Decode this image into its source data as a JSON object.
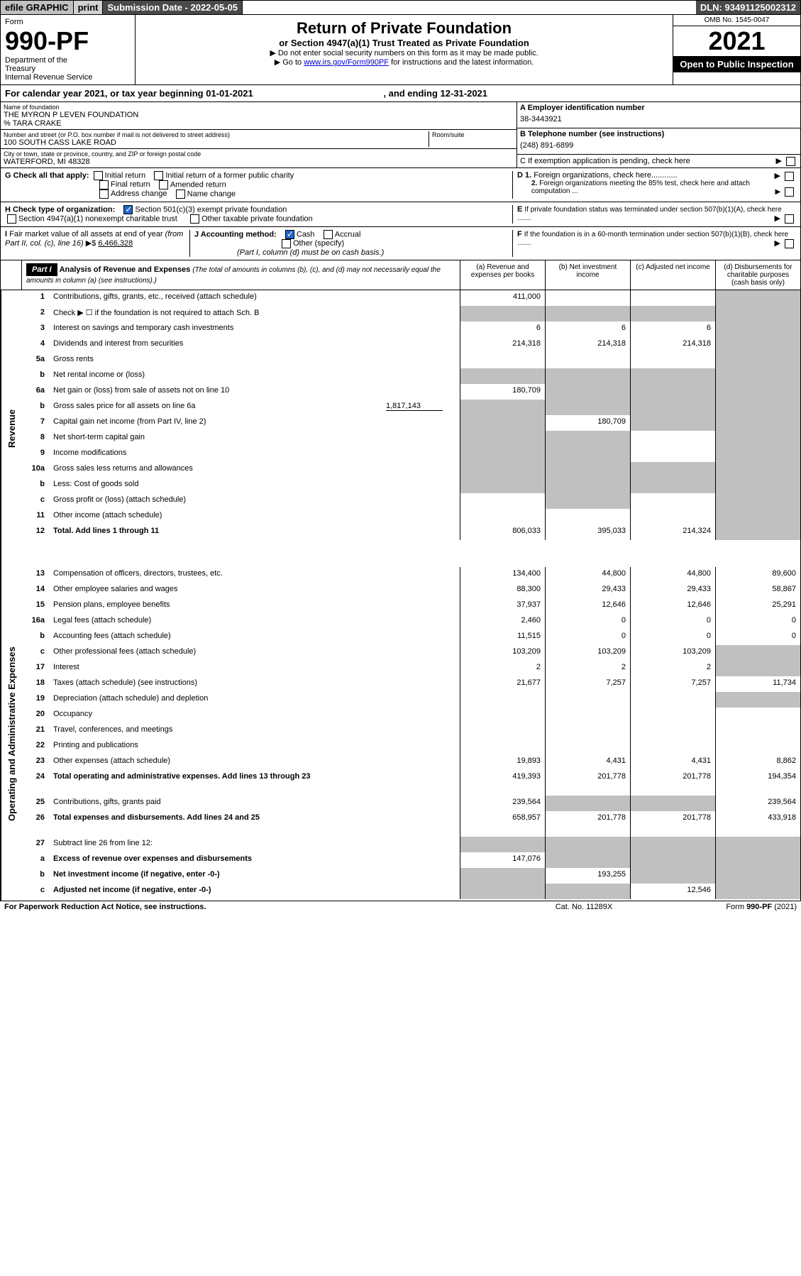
{
  "top_bar": {
    "efile": "efile GRAPHIC",
    "print": "print",
    "submission": "Submission Date - 2022-05-05",
    "dln": "DLN: 93491125002312"
  },
  "header": {
    "form_word": "Form",
    "form_number": "990-PF",
    "dept": "Department of the Treasury\nInternal Revenue Service",
    "title": "Return of Private Foundation",
    "subtitle": "or Section 4947(a)(1) Trust Treated as Private Foundation",
    "instr1": "▶ Do not enter social security numbers on this form as it may be made public.",
    "instr2": "▶ Go to",
    "link": "www.irs.gov/Form990PF",
    "instr3": "for instructions and the latest information.",
    "omb": "OMB No. 1545-0047",
    "year": "2021",
    "open": "Open to Public Inspection"
  },
  "cal_year": "For calendar year 2021, or tax year beginning 01-01-2021",
  "cal_year_end": ", and ending 12-31-2021",
  "entity": {
    "name_label": "Name of foundation",
    "name": "THE MYRON P LEVEN FOUNDATION",
    "care_of": "% TARA CRAKE",
    "addr_label": "Number and street (or P.O. box number if mail is not delivered to street address)",
    "addr": "100 SOUTH CASS LAKE ROAD",
    "room_label": "Room/suite",
    "city_label": "City or town, state or province, country, and ZIP or foreign postal code",
    "city": "WATERFORD, MI  48328",
    "ein_label": "A Employer identification number",
    "ein": "38-3443921",
    "phone_label": "B Telephone number (see instructions)",
    "phone": "(248) 891-6899",
    "c_label": "C If exemption application is pending, check here"
  },
  "section_g": {
    "label": "G Check all that apply:",
    "opts": [
      "Initial return",
      "Initial return of a former public charity",
      "Final return",
      "Amended return",
      "Address change",
      "Name change"
    ]
  },
  "section_d": {
    "d1": "D 1. Foreign organizations, check here",
    "d2": "2. Foreign organizations meeting the 85% test, check here and attach computation ..."
  },
  "section_h": {
    "label": "H Check type of organization:",
    "opt1": "Section 501(c)(3) exempt private foundation",
    "opt2": "Section 4947(a)(1) nonexempt charitable trust",
    "opt3": "Other taxable private foundation"
  },
  "section_e": "E  If private foundation status was terminated under section 507(b)(1)(A), check here .......",
  "section_i": {
    "label": "I Fair market value of all assets at end of year (from Part II, col. (c), line 16) ▶$",
    "value": "6,466,328"
  },
  "section_j": {
    "label": "J Accounting method:",
    "cash": "Cash",
    "accrual": "Accrual",
    "other": "Other (specify)",
    "note": "(Part I, column (d) must be on cash basis.)"
  },
  "section_f": "F  If the foundation is in a 60-month termination under section 507(b)(1)(B), check here .......",
  "part1": {
    "hdr": "Part I",
    "title": "Analysis of Revenue and Expenses",
    "note": "(The total of amounts in columns (b), (c), and (d) may not necessarily equal the amounts in column (a) (see instructions).)",
    "col_a": "(a)   Revenue and expenses per books",
    "col_b": "(b)   Net investment income",
    "col_c": "(c)   Adjusted net income",
    "col_d": "(d)   Disbursements for charitable purposes (cash basis only)"
  },
  "side_labels": {
    "revenue": "Revenue",
    "expenses": "Operating and Administrative Expenses"
  },
  "lines": [
    {
      "no": "1",
      "desc": "Contributions, gifts, grants, etc., received (attach schedule)",
      "a": "411,000",
      "b": "",
      "c": "",
      "d": "",
      "d_shaded": true
    },
    {
      "no": "2",
      "desc": "Check ▶ ☐ if the foundation is not required to attach Sch. B",
      "a": "",
      "b": "",
      "c": "",
      "d": "",
      "all_shaded": true
    },
    {
      "no": "3",
      "desc": "Interest on savings and temporary cash investments",
      "a": "6",
      "b": "6",
      "c": "6",
      "d": "",
      "d_shaded": true
    },
    {
      "no": "4",
      "desc": "Dividends and interest from securities",
      "a": "214,318",
      "b": "214,318",
      "c": "214,318",
      "d": "",
      "d_shaded": true
    },
    {
      "no": "5a",
      "desc": "Gross rents",
      "a": "",
      "b": "",
      "c": "",
      "d": "",
      "d_shaded": true
    },
    {
      "no": "b",
      "desc": "Net rental income or (loss)",
      "a": "",
      "b": "",
      "c": "",
      "d": "",
      "inline": true,
      "all_shaded": true
    },
    {
      "no": "6a",
      "desc": "Net gain or (loss) from sale of assets not on line 10",
      "a": "180,709",
      "b": "",
      "c": "",
      "d": "",
      "bcd_shaded": true
    },
    {
      "no": "b",
      "desc": "Gross sales price for all assets on line 6a",
      "inline_val": "1,817,143",
      "a": "",
      "b": "",
      "c": "",
      "d": "",
      "all_shaded": true
    },
    {
      "no": "7",
      "desc": "Capital gain net income (from Part IV, line 2)",
      "a": "",
      "b": "180,709",
      "c": "",
      "d": "",
      "a_shaded": true,
      "cd_shaded": true
    },
    {
      "no": "8",
      "desc": "Net short-term capital gain",
      "a": "",
      "b": "",
      "c": "",
      "d": "",
      "ab_shaded": true,
      "d_shaded": true
    },
    {
      "no": "9",
      "desc": "Income modifications",
      "a": "",
      "b": "",
      "c": "",
      "d": "",
      "ab_shaded": true,
      "d_shaded": true
    },
    {
      "no": "10a",
      "desc": "Gross sales less returns and allowances",
      "a": "",
      "b": "",
      "c": "",
      "d": "",
      "inline": true,
      "all_shaded": true
    },
    {
      "no": "b",
      "desc": "Less: Cost of goods sold",
      "a": "",
      "b": "",
      "c": "",
      "d": "",
      "inline": true,
      "all_shaded": true
    },
    {
      "no": "c",
      "desc": "Gross profit or (loss) (attach schedule)",
      "a": "",
      "b": "",
      "c": "",
      "d": "",
      "b_shaded": true,
      "d_shaded": true
    },
    {
      "no": "11",
      "desc": "Other income (attach schedule)",
      "a": "",
      "b": "",
      "c": "",
      "d": "",
      "d_shaded": true
    },
    {
      "no": "12",
      "desc": "Total. Add lines 1 through 11",
      "bold": true,
      "a": "806,033",
      "b": "395,033",
      "c": "214,324",
      "d": "",
      "d_shaded": true
    },
    {
      "no": "13",
      "desc": "Compensation of officers, directors, trustees, etc.",
      "a": "134,400",
      "b": "44,800",
      "c": "44,800",
      "d": "89,600"
    },
    {
      "no": "14",
      "desc": "Other employee salaries and wages",
      "a": "88,300",
      "b": "29,433",
      "c": "29,433",
      "d": "58,867"
    },
    {
      "no": "15",
      "desc": "Pension plans, employee benefits",
      "a": "37,937",
      "b": "12,646",
      "c": "12,646",
      "d": "25,291"
    },
    {
      "no": "16a",
      "desc": "Legal fees (attach schedule)",
      "a": "2,460",
      "b": "0",
      "c": "0",
      "d": "0"
    },
    {
      "no": "b",
      "desc": "Accounting fees (attach schedule)",
      "a": "11,515",
      "b": "0",
      "c": "0",
      "d": "0"
    },
    {
      "no": "c",
      "desc": "Other professional fees (attach schedule)",
      "a": "103,209",
      "b": "103,209",
      "c": "103,209",
      "d": "",
      "d_shaded": true
    },
    {
      "no": "17",
      "desc": "Interest",
      "a": "2",
      "b": "2",
      "c": "2",
      "d": "",
      "d_shaded": true
    },
    {
      "no": "18",
      "desc": "Taxes (attach schedule) (see instructions)",
      "a": "21,677",
      "b": "7,257",
      "c": "7,257",
      "d": "11,734"
    },
    {
      "no": "19",
      "desc": "Depreciation (attach schedule) and depletion",
      "a": "",
      "b": "",
      "c": "",
      "d": "",
      "d_shaded": true
    },
    {
      "no": "20",
      "desc": "Occupancy",
      "a": "",
      "b": "",
      "c": "",
      "d": ""
    },
    {
      "no": "21",
      "desc": "Travel, conferences, and meetings",
      "a": "",
      "b": "",
      "c": "",
      "d": ""
    },
    {
      "no": "22",
      "desc": "Printing and publications",
      "a": "",
      "b": "",
      "c": "",
      "d": ""
    },
    {
      "no": "23",
      "desc": "Other expenses (attach schedule)",
      "a": "19,893",
      "b": "4,431",
      "c": "4,431",
      "d": "8,862"
    },
    {
      "no": "24",
      "desc": "Total operating and administrative expenses. Add lines 13 through 23",
      "bold": true,
      "a": "419,393",
      "b": "201,778",
      "c": "201,778",
      "d": "194,354",
      "tall": true
    },
    {
      "no": "25",
      "desc": "Contributions, gifts, grants paid",
      "a": "239,564",
      "b": "",
      "c": "",
      "d": "239,564",
      "bc_shaded": true
    },
    {
      "no": "26",
      "desc": "Total expenses and disbursements. Add lines 24 and 25",
      "bold": true,
      "a": "658,957",
      "b": "201,778",
      "c": "201,778",
      "d": "433,918",
      "tall": true
    },
    {
      "no": "27",
      "desc": "Subtract line 26 from line 12:",
      "a": "",
      "b": "",
      "c": "",
      "d": "",
      "all_shaded": true
    },
    {
      "no": "a",
      "desc": "Excess of revenue over expenses and disbursements",
      "bold": true,
      "a": "147,076",
      "b": "",
      "c": "",
      "d": "",
      "bcd_shaded": true
    },
    {
      "no": "b",
      "desc": "Net investment income (if negative, enter -0-)",
      "bold": true,
      "a": "",
      "b": "193,255",
      "c": "",
      "d": "",
      "a_shaded": true,
      "cd_shaded": true
    },
    {
      "no": "c",
      "desc": "Adjusted net income (if negative, enter -0-)",
      "bold": true,
      "a": "",
      "b": "",
      "c": "12,546",
      "d": "",
      "ab_shaded": true,
      "d_shaded": true
    }
  ],
  "footer": {
    "left": "For Paperwork Reduction Act Notice, see instructions.",
    "mid": "Cat. No. 11289X",
    "right": "Form 990-PF (2021)"
  }
}
